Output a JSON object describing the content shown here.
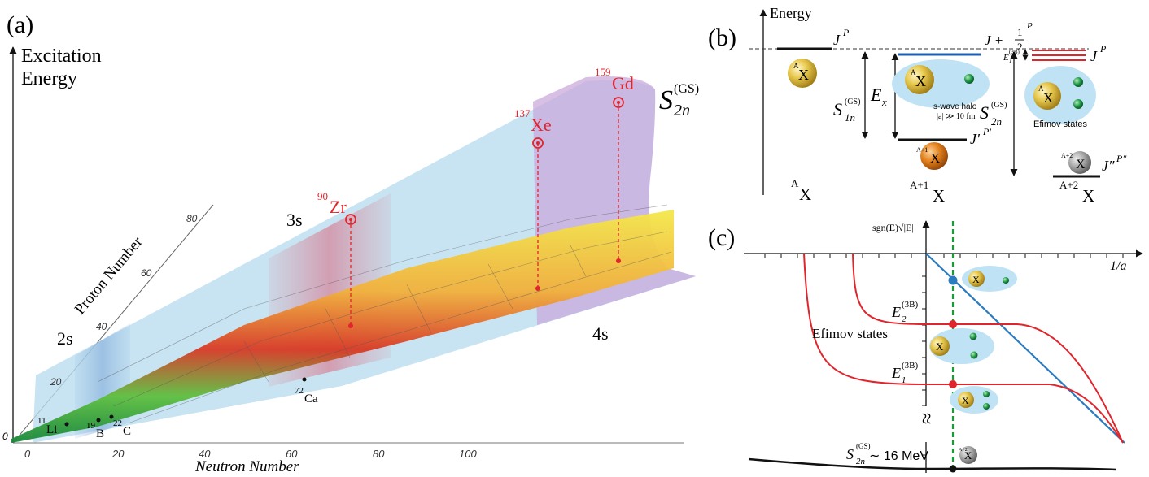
{
  "panel_a": {
    "label": "(a)",
    "y_axis_title_line1": "Excitation",
    "y_axis_title_line2": "Energy",
    "proton_axis_title": "Proton Number",
    "neutron_axis_title": "Neutron Number",
    "proton_ticks": [
      "20",
      "40",
      "60",
      "80"
    ],
    "neutron_ticks": [
      "0",
      "20",
      "40",
      "60",
      "80",
      "100"
    ],
    "origin_label": "0",
    "shell_labels": {
      "s2": "2s",
      "s3": "3s",
      "s4": "4s"
    },
    "s2n_symbol": "S",
    "s2n_sub": "2n",
    "s2n_sup": "(GS)",
    "highlighted_nuclei": [
      {
        "mass": "90",
        "symbol": "Zr"
      },
      {
        "mass": "137",
        "symbol": "Xe"
      },
      {
        "mass": "159",
        "symbol": "Gd"
      }
    ],
    "black_nuclei": [
      {
        "mass": "11",
        "symbol": "Li"
      },
      {
        "mass": "19",
        "symbol": "B"
      },
      {
        "mass": "22",
        "symbol": "C"
      },
      {
        "mass": "72",
        "symbol": "Ca"
      }
    ],
    "colors": {
      "highlight": "#e0252c",
      "s2_band": "#8fb7de",
      "s3_band": "#d98b9a",
      "s4_band": "#c9a6d9",
      "sheet": "#b9dcef"
    }
  },
  "panel_b": {
    "label": "(b)",
    "energy_axis_title": "Energy",
    "jp_base": "J",
    "jp_sup": "P",
    "j_half_text": "J +",
    "half_num": "1",
    "half_den": "2",
    "half_sup": "P",
    "jpp_text": "J′",
    "jpp_sup": "P′",
    "jppp_text": "J″",
    "jppp_sup": "P″",
    "s1n_main": "S",
    "s1n_sub": "1n",
    "s1n_sup": "(GS)",
    "ex_main": "E",
    "ex_sub": "x",
    "s2n_main": "S",
    "s2n_sub": "2n",
    "s2n_sup": "(GS)",
    "e1_main": "E",
    "e1_sub": "1",
    "e1_sup": "(3B)",
    "nucleus_A_sup": "A",
    "nucleus_A1_sup": "A+1",
    "nucleus_A2_sup": "A+2",
    "nucleus_symbol": "X",
    "halo_line1": "s-wave halo",
    "halo_line2": "|a| ≫ 10 fm",
    "efimov_states_label": "Efimov states",
    "colors": {
      "blue_level": "#1a5fb4",
      "red_level": "#e0252c",
      "halo": "#bfe3f4"
    }
  },
  "panel_c": {
    "label": "(c)",
    "y_axis_label": "sgn(E)√|E|",
    "x_axis_label": "1/a",
    "efimov_label": "Efimov states",
    "e2_main": "E",
    "e2_sub": "2",
    "e2_sup": "(3B)",
    "e1_main": "E",
    "e1_sub": "1",
    "e1_sup": "(3B)",
    "break_symbol": "≈",
    "s2n_main": "S",
    "s2n_sub": "2n",
    "s2n_sup": "(GS)",
    "s2n_value": "∼ 16 MeV",
    "nucleus_A_sup": "A",
    "nucleus_A2_sup": "A+2",
    "nucleus_symbol": "X",
    "colors": {
      "blue_line": "#2b7bbf",
      "red_curve": "#e0252c",
      "dashed_green": "#1d9a3a"
    }
  }
}
